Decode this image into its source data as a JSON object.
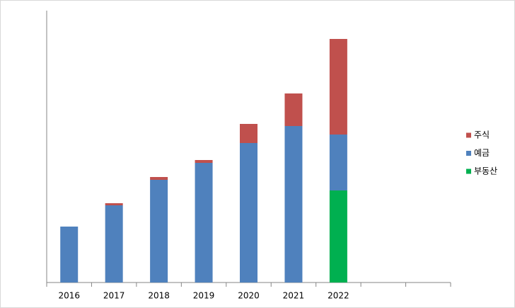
{
  "chart_data": {
    "type": "stacked_bar",
    "categories": [
      "2016",
      "2017",
      "2018",
      "2019",
      "2020",
      "2021",
      "2022",
      null,
      null
    ],
    "series": [
      {
        "name": "주식",
        "color": "#c0504d",
        "values": [
          null,
          3,
          4,
          4,
          27,
          46,
          135,
          null,
          null
        ]
      },
      {
        "name": "예금",
        "color": "#4f81bd",
        "values": [
          79,
          109,
          145,
          169,
          197,
          221,
          79,
          null,
          null
        ]
      },
      {
        "name": "부동산",
        "color": "#00b050",
        "values": [
          null,
          null,
          null,
          null,
          null,
          null,
          130,
          null,
          null
        ]
      }
    ],
    "ylim": [
      0,
      384
    ],
    "legend": "right"
  }
}
